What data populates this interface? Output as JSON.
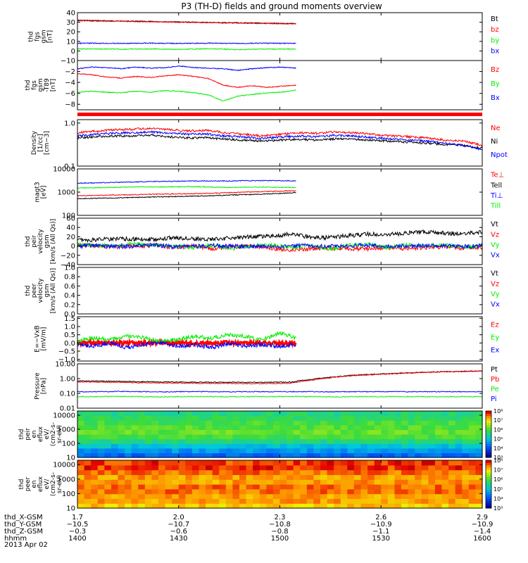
{
  "title": "P3 (TH-D) fields and ground moments overview",
  "date_label": "2013 Apr 02",
  "colors": {
    "black": "#000000",
    "red": "#ff0000",
    "green": "#00ee00",
    "blue": "#0000ff",
    "frame": "#000000"
  },
  "chart_data": [
    {
      "type": "line",
      "id": "fgs",
      "ylabel": [
        "thd",
        "fgs",
        "gsm",
        "[nT]"
      ],
      "ylim": [
        -10,
        40
      ],
      "yticks": [
        "40",
        "30",
        "20",
        "10",
        "0",
        "−10"
      ],
      "ytick_values": [
        40,
        30,
        20,
        10,
        0,
        -10
      ],
      "x_end_fraction": 0.54,
      "series": [
        {
          "name": "Bt",
          "color": "black",
          "values": [
            32,
            31.8,
            31.5,
            31.2,
            31,
            30.8,
            30.5,
            30.3,
            30,
            29.8,
            29.6,
            29.4,
            29.2,
            29,
            28.8,
            28.6
          ]
        },
        {
          "name": "bz",
          "color": "red",
          "values": [
            31.5,
            31.3,
            31.1,
            30.9,
            30.7,
            30.5,
            30.2,
            30,
            29.8,
            29.5,
            29.3,
            29.1,
            28.9,
            28.7,
            28.5,
            28.3
          ]
        },
        {
          "name": "by",
          "color": "green",
          "values": [
            2,
            2.2,
            2,
            1.8,
            2,
            2.1,
            1.9,
            1.5,
            2,
            2.2,
            2,
            1.2,
            1.8,
            2,
            1.9,
            2
          ]
        },
        {
          "name": "bx",
          "color": "blue",
          "values": [
            8,
            8.1,
            8,
            7.9,
            8,
            8.2,
            8,
            7.9,
            8,
            8.1,
            8,
            7.8,
            8,
            8.1,
            8,
            7.9
          ]
        }
      ]
    },
    {
      "type": "line",
      "id": "dbb",
      "ylabel": [
        "thd",
        "fgs",
        "gsm",
        "-T89",
        "[nT]"
      ],
      "ylim": [
        -9,
        0
      ],
      "yticks": [
        "−2",
        "−4",
        "−6",
        "−8"
      ],
      "ytick_values": [
        -2,
        -4,
        -6,
        -8
      ],
      "x_end_fraction": 0.54,
      "series": [
        {
          "name": "Bz",
          "color": "red",
          "values": [
            -2.4,
            -2.6,
            -3.0,
            -3.2,
            -2.9,
            -3.1,
            -2.8,
            -2.6,
            -2.9,
            -3.3,
            -4.5,
            -4.9,
            -4.6,
            -4.9,
            -4.7,
            -4.5
          ]
        },
        {
          "name": "By",
          "color": "green",
          "values": [
            -5.8,
            -5.6,
            -5.8,
            -5.9,
            -5.6,
            -5.8,
            -5.5,
            -5.6,
            -5.9,
            -6.3,
            -7.4,
            -6.5,
            -6.2,
            -5.9,
            -5.8,
            -5.4
          ]
        },
        {
          "name": "Bx",
          "color": "blue",
          "values": [
            -1.5,
            -1.2,
            -1.3,
            -1.5,
            -1.2,
            -1.4,
            -1.3,
            -1.0,
            -1.3,
            -1.4,
            -1.5,
            -1.8,
            -1.5,
            -1.3,
            -1.2,
            -1.4
          ]
        }
      ]
    },
    {
      "type": "line",
      "id": "density",
      "ylabel": [
        "Density",
        "[1/cc]",
        "[cm−3]"
      ],
      "ylim": [
        0.1,
        1.2
      ],
      "log": true,
      "yticks": [
        "1.0",
        "0.1"
      ],
      "ytick_values": [
        1.0,
        0.1
      ],
      "x_end_fraction": 1.0,
      "series": [
        {
          "name": "Ne",
          "color": "red",
          "values": [
            0.6,
            0.65,
            0.7,
            0.72,
            0.75,
            0.7,
            0.65,
            0.68,
            0.6,
            0.55,
            0.5,
            0.55,
            0.6,
            0.58,
            0.62,
            0.6,
            0.55,
            0.5,
            0.48,
            0.45,
            0.4,
            0.38,
            0.3
          ]
        },
        {
          "name": "Ni",
          "color": "black",
          "values": [
            0.45,
            0.48,
            0.5,
            0.5,
            0.52,
            0.48,
            0.45,
            0.46,
            0.42,
            0.4,
            0.38,
            0.4,
            0.42,
            0.4,
            0.43,
            0.42,
            0.4,
            0.38,
            0.36,
            0.34,
            0.32,
            0.3,
            0.26
          ]
        },
        {
          "name": "Npot",
          "color": "blue",
          "values": [
            0.5,
            0.55,
            0.58,
            0.6,
            0.62,
            0.58,
            0.55,
            0.56,
            0.5,
            0.47,
            0.44,
            0.47,
            0.5,
            0.48,
            0.52,
            0.5,
            0.46,
            0.43,
            0.4,
            0.38,
            0.34,
            0.3,
            0.24
          ]
        }
      ]
    },
    {
      "type": "line",
      "id": "temp",
      "ylabel": [
        "magt3",
        "[eV]"
      ],
      "ylim": [
        100,
        10000
      ],
      "log": true,
      "yticks": [
        "10000",
        "1000",
        "100"
      ],
      "ytick_values": [
        10000,
        1000,
        100
      ],
      "x_end_fraction": 0.54,
      "series": [
        {
          "name": "Te⊥",
          "color": "red",
          "values": [
            700,
            720,
            750,
            760,
            800,
            820,
            850,
            860,
            900,
            950,
            1000,
            1050,
            1100,
            1150
          ]
        },
        {
          "name": "Tell",
          "color": "black",
          "values": [
            520,
            540,
            560,
            580,
            600,
            630,
            650,
            680,
            700,
            740,
            780,
            820,
            880,
            950
          ]
        },
        {
          "name": "Ti⊥",
          "color": "blue",
          "values": [
            2400,
            2500,
            2600,
            2700,
            2800,
            2900,
            2950,
            3000,
            3050,
            3000,
            3100,
            3150,
            3100,
            3050
          ]
        },
        {
          "name": "Till",
          "color": "green",
          "values": [
            1500,
            1550,
            1600,
            1650,
            1700,
            1680,
            1700,
            1720,
            1650,
            1600,
            1620,
            1650,
            1600,
            1580
          ]
        }
      ]
    },
    {
      "type": "line",
      "id": "peir",
      "ylabel": [
        "thd",
        "peir",
        "velocity",
        "gsm",
        "[km/s (All Qs)]"
      ],
      "ylim": [
        -40,
        60
      ],
      "yticks": [
        "60",
        "40",
        "20",
        "0",
        "−20",
        "−40"
      ],
      "ytick_values": [
        60,
        40,
        20,
        0,
        -20,
        -40
      ],
      "x_end_fraction": 1.0,
      "series": [
        {
          "name": "Vt",
          "color": "black",
          "values": [
            12,
            14,
            16,
            15,
            14,
            18,
            16,
            15,
            17,
            20,
            22,
            25,
            20,
            18,
            22,
            26,
            24,
            28,
            30,
            28,
            26,
            30
          ]
        },
        {
          "name": "Vz",
          "color": "red",
          "values": [
            2,
            0,
            -2,
            0,
            2,
            -3,
            0,
            -5,
            -2,
            0,
            -5,
            -8,
            -6,
            -4,
            -5,
            -6,
            -4,
            -5,
            -3,
            -2,
            -4,
            -3
          ]
        },
        {
          "name": "Vy",
          "color": "green",
          "values": [
            3,
            2,
            0,
            5,
            2,
            0,
            -3,
            2,
            -5,
            0,
            3,
            -4,
            2,
            -6,
            0,
            5,
            -3,
            2,
            0,
            3,
            -2,
            0
          ]
        },
        {
          "name": "Vx",
          "color": "blue",
          "values": [
            0,
            1,
            -1,
            0,
            2,
            -2,
            0,
            1,
            -1,
            0,
            -2,
            0,
            1,
            -1,
            0,
            2,
            -1,
            0,
            1,
            0,
            -1,
            0
          ]
        }
      ]
    },
    {
      "type": "line",
      "id": "peer",
      "ylabel": [
        "thd",
        "peer",
        "velocity",
        "gsm",
        "[km/s (All Qs)]"
      ],
      "ylim": [
        0,
        1
      ],
      "yticks": [
        "1.0",
        "0.8",
        "0.6",
        "0.4",
        "0.2",
        "0.0"
      ],
      "ytick_values": [
        1.0,
        0.8,
        0.6,
        0.4,
        0.2,
        0.0
      ],
      "x_end_fraction": 0,
      "series": [
        {
          "name": "Vt",
          "color": "black",
          "values": []
        },
        {
          "name": "Vz",
          "color": "red",
          "values": []
        },
        {
          "name": "Vy",
          "color": "green",
          "values": []
        },
        {
          "name": "Vx",
          "color": "blue",
          "values": []
        }
      ]
    },
    {
      "type": "line",
      "id": "efield",
      "ylabel": [
        "E=−VxB",
        "[mV/m]"
      ],
      "ylim": [
        -1.1,
        1.6
      ],
      "yticks": [
        "1.5",
        "1.0",
        "0.5",
        "0.0",
        "−0.5",
        "−1.0"
      ],
      "ytick_values": [
        1.5,
        1.0,
        0.5,
        0.0,
        -0.5,
        -1.0
      ],
      "x_end_fraction": 0.54,
      "series": [
        {
          "name": "Ez",
          "color": "red",
          "values": [
            0,
            0.02,
            0,
            -0.02,
            0,
            0.01,
            0,
            0,
            -0.01,
            0,
            0.02,
            0,
            -0.02,
            0
          ]
        },
        {
          "name": "Ey",
          "color": "green",
          "values": [
            0.1,
            0.3,
            0.2,
            0.4,
            0.3,
            0.1,
            0.2,
            0.4,
            0.3,
            0.5,
            0.4,
            0.2,
            0.6,
            0.3
          ]
        },
        {
          "name": "Ex",
          "color": "blue",
          "values": [
            -0.1,
            -0.2,
            0,
            -0.3,
            -0.1,
            0,
            -0.2,
            -0.1,
            -0.3,
            0,
            -0.2,
            -0.1,
            -0.2,
            -0.1
          ]
        }
      ]
    },
    {
      "type": "line",
      "id": "pressure",
      "ylabel": [
        "Pressure",
        "[nPa]"
      ],
      "ylim": [
        0.01,
        10
      ],
      "log": true,
      "yticks": [
        "10.00",
        "1.00",
        "0.10",
        "0.01"
      ],
      "ytick_values": [
        10,
        1,
        0.1,
        0.01
      ],
      "x_end_fraction": 1.0,
      "series": [
        {
          "name": "Pt",
          "color": "black",
          "values": [
            0.7,
            0.68,
            0.65,
            0.62,
            0.6,
            0.58,
            0.57,
            0.56,
            0.56,
            0.56,
            0.58,
            0.9,
            1.3,
            1.7,
            2.0,
            2.3,
            2.6,
            2.9,
            3.1,
            3.3
          ]
        },
        {
          "name": "Pb",
          "color": "red",
          "values": [
            0.6,
            0.58,
            0.56,
            0.53,
            0.51,
            0.49,
            0.48,
            0.47,
            0.46,
            0.46,
            0.48,
            0.8,
            1.2,
            1.6,
            1.9,
            2.2,
            2.5,
            2.8,
            3.0,
            3.2
          ]
        },
        {
          "name": "Pe",
          "color": "green",
          "values": [
            0.06,
            0.06,
            0.062,
            0.06,
            0.058,
            0.06,
            0.061,
            0.059,
            0.06,
            0.06,
            0.062,
            0.06,
            0.058,
            0.06,
            0.06,
            0.061,
            0.06,
            0.059,
            0.06,
            0.06
          ]
        },
        {
          "name": "Pi",
          "color": "blue",
          "values": [
            0.13,
            0.13,
            0.135,
            0.13,
            0.128,
            0.13,
            0.132,
            0.128,
            0.13,
            0.13,
            0.132,
            0.13,
            0.128,
            0.13,
            0.13,
            0.131,
            0.13,
            0.129,
            0.13,
            0.13
          ]
        }
      ]
    },
    {
      "type": "heatmap",
      "id": "peir_spec",
      "ylabel": [
        "thd",
        "peir",
        "en",
        "eflux",
        "eV/",
        "(cm2-s-",
        "sr-eV)"
      ],
      "ylim": [
        10,
        20000
      ],
      "log": true,
      "yticks": [
        "10000",
        "1000",
        "100",
        "10"
      ],
      "ytick_values": [
        10000,
        1000,
        100,
        10
      ],
      "colorbar_labels": [
        "10⁸",
        "10⁷",
        "10⁶",
        "10⁵",
        "10⁴",
        "10³"
      ],
      "colorbar_values": [
        8,
        7,
        6,
        5,
        4,
        3
      ],
      "rows_low_to_high": [
        4.2,
        4.6,
        5.0,
        5.6,
        6.0,
        6.2,
        6.1,
        6.0,
        5.8,
        5.6
      ]
    },
    {
      "type": "heatmap",
      "id": "peer_spec",
      "ylabel": [
        "thd",
        "peer",
        "en",
        "eflux",
        "eV/",
        "(cm2-s-",
        "sr-eV)"
      ],
      "ylim": [
        10,
        20000
      ],
      "log": true,
      "yticks": [
        "10000",
        "1000",
        "100",
        "10"
      ],
      "ytick_values": [
        10000,
        1000,
        100,
        10
      ],
      "colorbar_labels": [
        "10⁸",
        "10⁷",
        "10⁶",
        "10⁵",
        "10⁴",
        "10³"
      ],
      "colorbar_values": [
        8,
        7,
        6,
        5,
        4,
        3
      ],
      "rows_low_to_high": [
        7.2,
        7.4,
        7.4,
        7.6,
        7.6,
        7.4,
        7.4,
        7.6,
        7.8,
        7.8
      ]
    }
  ],
  "x_axis": {
    "row_labels": [
      "thd_X-GSM",
      "thd_Y-GSM",
      "thd_Z-GSM",
      "hhmm"
    ],
    "ticks": [
      {
        "x": "1.7",
        "y": "−10.5",
        "z": "−0.3",
        "t": "1400"
      },
      {
        "x": "2.0",
        "y": "−10.7",
        "z": "−0.6",
        "t": "1430"
      },
      {
        "x": "2.3",
        "y": "−10.8",
        "z": "−0.8",
        "t": "1500"
      },
      {
        "x": "2.6",
        "y": "−10.9",
        "z": "−1.1",
        "t": "1530"
      },
      {
        "x": "2.9",
        "y": "−10.9",
        "z": "−1.4",
        "t": "1600"
      }
    ]
  }
}
